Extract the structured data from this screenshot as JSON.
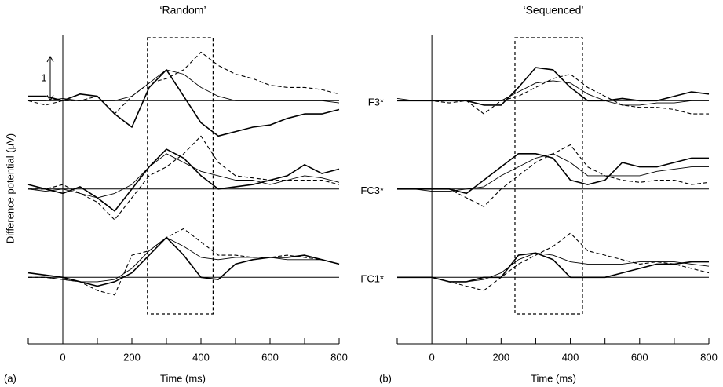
{
  "chart_data": [
    {
      "type": "line",
      "panel_label": "(a)",
      "title": "‘Random’",
      "xlabel": "Time (ms)",
      "ylabel": "Difference potential (μV)",
      "scale_bar": 1,
      "xlim": [
        -100,
        800
      ],
      "xticks": [
        0,
        200,
        400,
        600,
        800
      ],
      "xminorticks": [
        -100,
        100,
        300,
        500,
        700
      ],
      "window": [
        245,
        435
      ],
      "x": [
        -100,
        -50,
        0,
        50,
        100,
        150,
        200,
        250,
        300,
        350,
        400,
        450,
        500,
        550,
        600,
        650,
        700,
        750,
        800
      ],
      "strips": [
        {
          "label": "F3*",
          "ylim": [
            -1,
            1
          ],
          "series": [
            {
              "style": "thick",
              "color": "#000",
              "values": [
                0.1,
                0.1,
                0,
                0.15,
                0.1,
                -0.3,
                -0.6,
                0.3,
                0.7,
                0.1,
                -0.5,
                -0.8,
                -0.7,
                -0.6,
                -0.55,
                -0.4,
                -0.3,
                -0.3,
                -0.2
              ]
            },
            {
              "style": "thin",
              "color": "#000",
              "values": [
                0,
                0,
                0.05,
                0,
                0,
                0,
                0.1,
                0.4,
                0.7,
                0.6,
                0.3,
                0.1,
                0,
                0,
                0,
                0,
                0,
                0,
                -0.05
              ]
            },
            {
              "style": "dashed",
              "color": "#000",
              "values": [
                0,
                -0.1,
                0,
                0,
                0.1,
                -0.3,
                0.1,
                0.4,
                0.5,
                0.7,
                1.1,
                0.8,
                0.6,
                0.5,
                0.35,
                0.3,
                0.3,
                0.25,
                0.15
              ]
            }
          ]
        },
        {
          "label": "FC3*",
          "ylim": [
            -1,
            1
          ],
          "series": [
            {
              "style": "thick",
              "color": "#000",
              "values": [
                0.1,
                0,
                -0.1,
                0.05,
                -0.2,
                -0.5,
                0,
                0.5,
                0.9,
                0.7,
                0.3,
                0,
                0.05,
                0.1,
                0.2,
                0.3,
                0.55,
                0.35,
                0.45
              ]
            },
            {
              "style": "thin",
              "color": "#000",
              "values": [
                0,
                -0.05,
                0,
                -0.1,
                -0.2,
                -0.1,
                0.1,
                0.5,
                0.8,
                0.6,
                0.4,
                0.3,
                0.2,
                0.2,
                0.1,
                0.2,
                0.3,
                0.25,
                0.15
              ]
            },
            {
              "style": "dashed",
              "color": "#000",
              "values": [
                0,
                0,
                0.1,
                -0.1,
                -0.3,
                -0.7,
                -0.2,
                0.3,
                0.5,
                0.8,
                1.2,
                0.6,
                0.3,
                0.25,
                0.2,
                0.2,
                0.2,
                0.2,
                0.1
              ]
            }
          ]
        },
        {
          "label": "FC1*",
          "ylim": [
            -1,
            1
          ],
          "series": [
            {
              "style": "thick",
              "color": "#000",
              "values": [
                0.1,
                0.05,
                0,
                -0.1,
                -0.2,
                -0.1,
                0.1,
                0.5,
                0.9,
                0.5,
                0,
                -0.05,
                0.3,
                0.4,
                0.45,
                0.45,
                0.5,
                0.4,
                0.3
              ]
            },
            {
              "style": "thin",
              "color": "#000",
              "values": [
                0,
                0,
                -0.05,
                -0.1,
                -0.1,
                -0.05,
                0.2,
                0.6,
                0.9,
                0.7,
                0.45,
                0.4,
                0.45,
                0.45,
                0.45,
                0.4,
                0.4,
                0.4,
                0.3
              ]
            },
            {
              "style": "dashed",
              "color": "#000",
              "values": [
                0,
                0,
                -0.05,
                -0.1,
                -0.3,
                -0.4,
                0.5,
                0.6,
                0.9,
                1.1,
                0.8,
                0.5,
                0.5,
                0.45,
                0.45,
                0.5,
                0.45,
                0.4,
                0.3
              ]
            }
          ]
        }
      ]
    },
    {
      "type": "line",
      "panel_label": "(b)",
      "title": "‘Sequenced’",
      "xlabel": "Time (ms)",
      "xlim": [
        -100,
        800
      ],
      "xticks": [
        0,
        200,
        400,
        600,
        800
      ],
      "xminorticks": [
        -100,
        100,
        300,
        500,
        700
      ],
      "window": [
        240,
        435
      ],
      "x": [
        -100,
        -50,
        0,
        50,
        100,
        150,
        200,
        250,
        300,
        350,
        400,
        450,
        500,
        550,
        600,
        650,
        700,
        750,
        800
      ],
      "strips": [
        {
          "ylim": [
            -1,
            1
          ],
          "series": [
            {
              "style": "thick",
              "color": "#000",
              "values": [
                0,
                0,
                0,
                0,
                0,
                -0.1,
                -0.1,
                0.3,
                0.75,
                0.7,
                0.3,
                0,
                0,
                0.05,
                0,
                0,
                0.1,
                0.2,
                0.15
              ]
            },
            {
              "style": "thin",
              "color": "#000",
              "values": [
                0.05,
                0,
                0,
                0,
                0,
                0,
                0,
                0.2,
                0.4,
                0.45,
                0.4,
                0.15,
                0,
                -0.1,
                -0.1,
                -0.05,
                -0.05,
                0,
                0
              ]
            },
            {
              "style": "dashed",
              "color": "#000",
              "values": [
                0,
                0,
                0,
                -0.05,
                0,
                -0.3,
                0,
                0.1,
                0.3,
                0.5,
                0.6,
                0.3,
                0.1,
                -0.1,
                -0.15,
                -0.15,
                -0.2,
                -0.3,
                -0.3
              ]
            }
          ]
        },
        {
          "ylim": [
            -1,
            1
          ],
          "series": [
            {
              "style": "thick",
              "color": "#000",
              "values": [
                0,
                0,
                0,
                0,
                -0.1,
                0.2,
                0.5,
                0.8,
                0.8,
                0.7,
                0.2,
                0.1,
                0.2,
                0.6,
                0.5,
                0.5,
                0.6,
                0.7,
                0.7
              ]
            },
            {
              "style": "thin",
              "color": "#000",
              "values": [
                0,
                0,
                -0.05,
                -0.05,
                0,
                0.05,
                0.3,
                0.5,
                0.7,
                0.8,
                0.6,
                0.3,
                0.3,
                0.3,
                0.3,
                0.4,
                0.45,
                0.5,
                0.5
              ]
            },
            {
              "style": "dashed",
              "color": "#000",
              "values": [
                0,
                0,
                0,
                0,
                -0.2,
                -0.4,
                0,
                0.3,
                0.6,
                0.8,
                1.0,
                0.5,
                0.3,
                0.2,
                0.15,
                0.2,
                0.2,
                0.1,
                0.15
              ]
            }
          ]
        },
        {
          "ylim": [
            -1,
            1
          ],
          "series": [
            {
              "style": "thick",
              "color": "#000",
              "values": [
                0,
                0,
                0,
                -0.1,
                -0.1,
                0,
                0,
                0.5,
                0.55,
                0.4,
                0,
                0,
                0,
                0.1,
                0.2,
                0.3,
                0.3,
                0.35,
                0.35
              ]
            },
            {
              "style": "thin",
              "color": "#000",
              "values": [
                0,
                0,
                0,
                -0.1,
                -0.1,
                -0.05,
                0.1,
                0.4,
                0.55,
                0.5,
                0.35,
                0.3,
                0.3,
                0.3,
                0.35,
                0.35,
                0.35,
                0.3,
                0.25
              ]
            },
            {
              "style": "dashed",
              "color": "#000",
              "values": [
                0,
                0,
                0,
                -0.1,
                -0.2,
                -0.3,
                0,
                0.3,
                0.5,
                0.7,
                1.0,
                0.6,
                0.5,
                0.4,
                0.3,
                0.35,
                0.3,
                0.2,
                0.1
              ]
            }
          ]
        }
      ]
    }
  ]
}
